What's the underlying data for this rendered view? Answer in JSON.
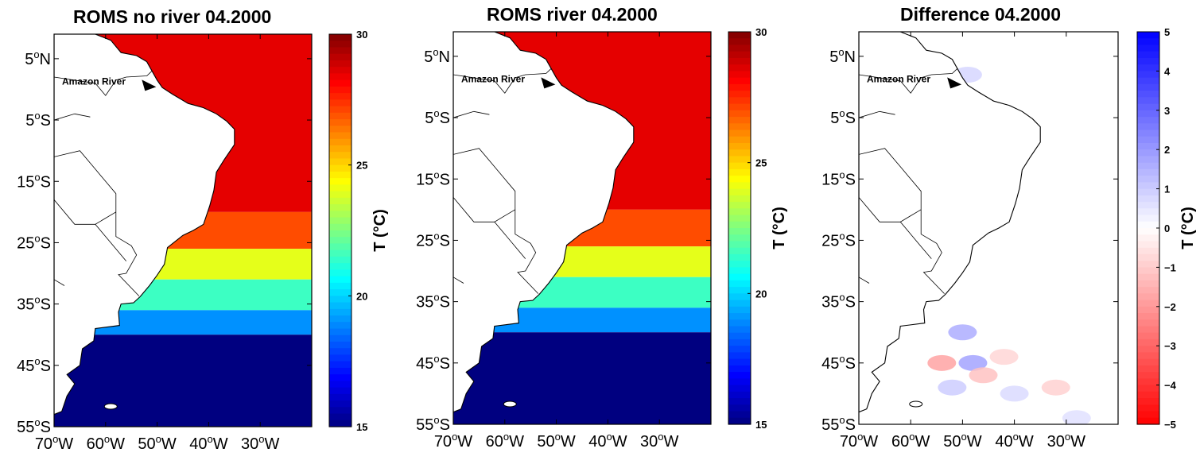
{
  "chart_data": [
    {
      "type": "heatmap",
      "title": "ROMS no river 04.2000",
      "variable": "sea surface temperature",
      "xlabel": "",
      "ylabel": "",
      "x_ticks": [
        "70°W",
        "60°W",
        "50°W",
        "40°W",
        "30°W"
      ],
      "y_ticks": [
        "5°N",
        "5°S",
        "15°S",
        "25°S",
        "35°S",
        "45°S",
        "55°S"
      ],
      "lon_range": [
        -70,
        -20
      ],
      "lat_range": [
        -55,
        9
      ],
      "colorbar": {
        "min": 15,
        "max": 30,
        "ticks": [
          "30",
          "25",
          "20",
          "15"
        ],
        "label": "T (°C)",
        "colormap": "jet"
      },
      "annotation": "Amazon River",
      "temperature_zones": [
        {
          "lat_from": 9,
          "lat_to": -20,
          "value": 28.5
        },
        {
          "lat_from": -20,
          "lat_to": -26,
          "value": 27
        },
        {
          "lat_from": -26,
          "lat_to": -31,
          "value": 24
        },
        {
          "lat_from": -31,
          "lat_to": -36,
          "value": 21.5
        },
        {
          "lat_from": -36,
          "lat_to": -40,
          "value": 19
        },
        {
          "lat_from": -40,
          "lat_to": -55,
          "value": 15
        }
      ]
    },
    {
      "type": "heatmap",
      "title": "ROMS river 04.2000",
      "variable": "sea surface temperature",
      "xlabel": "",
      "ylabel": "",
      "x_ticks": [
        "70°W",
        "60°W",
        "50°W",
        "40°W",
        "30°W"
      ],
      "y_ticks": [
        "5°N",
        "5°S",
        "15°S",
        "25°S",
        "35°S",
        "45°S",
        "55°S"
      ],
      "lon_range": [
        -70,
        -20
      ],
      "lat_range": [
        -55,
        9
      ],
      "colorbar": {
        "min": 15,
        "max": 30,
        "ticks": [
          "30",
          "25",
          "20",
          "15"
        ],
        "label": "T (°C)",
        "colormap": "jet"
      },
      "annotation": "Amazon River",
      "temperature_zones": [
        {
          "lat_from": 9,
          "lat_to": -20,
          "value": 28.5
        },
        {
          "lat_from": -20,
          "lat_to": -26,
          "value": 27
        },
        {
          "lat_from": -26,
          "lat_to": -31,
          "value": 24
        },
        {
          "lat_from": -31,
          "lat_to": -36,
          "value": 21.5
        },
        {
          "lat_from": -36,
          "lat_to": -40,
          "value": 19
        },
        {
          "lat_from": -40,
          "lat_to": -55,
          "value": 15
        }
      ]
    },
    {
      "type": "heatmap",
      "title": "Difference 04.2000",
      "variable": "temperature difference",
      "xlabel": "",
      "ylabel": "",
      "x_ticks": [
        "70°W",
        "60°W",
        "50°W",
        "40°W",
        "30°W"
      ],
      "y_ticks": [
        "5°N",
        "5°S",
        "15°S",
        "25°S",
        "35°S",
        "45°S",
        "55°S"
      ],
      "lon_range": [
        -70,
        -20
      ],
      "lat_range": [
        -55,
        9
      ],
      "colorbar": {
        "min": -5,
        "max": 5,
        "ticks": [
          "5",
          "4",
          "3",
          "2",
          "1",
          "0",
          "−1",
          "−2",
          "−3",
          "−4",
          "−5"
        ],
        "label": "T (°C)",
        "colormap": "red-white-blue"
      },
      "annotation": "Amazon River",
      "anomaly_blobs": [
        {
          "lon": -54,
          "lat": -45,
          "value": -1.8
        },
        {
          "lon": -50,
          "lat": -40,
          "value": 1.6
        },
        {
          "lon": -48,
          "lat": -45,
          "value": 1.8
        },
        {
          "lon": -46,
          "lat": -47,
          "value": -1.2
        },
        {
          "lon": -52,
          "lat": -49,
          "value": 1.0
        },
        {
          "lon": -42,
          "lat": -44,
          "value": -0.8
        },
        {
          "lon": -40,
          "lat": -50,
          "value": 0.7
        },
        {
          "lon": -32,
          "lat": -49,
          "value": -0.9
        },
        {
          "lon": -28,
          "lat": -54,
          "value": 0.6
        },
        {
          "lon": -49,
          "lat": 2,
          "value": 0.8
        }
      ]
    }
  ]
}
